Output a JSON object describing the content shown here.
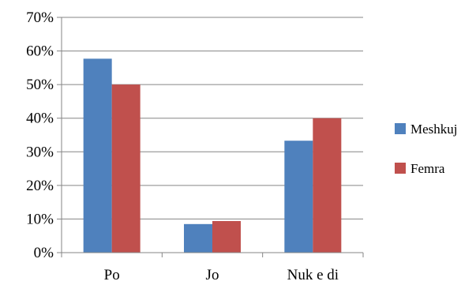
{
  "chart_data": {
    "type": "bar",
    "categories": [
      "Po",
      "Jo",
      "Nuk e di"
    ],
    "series": [
      {
        "name": "Meshkuj",
        "values": [
          57.7,
          8.5,
          33.3
        ],
        "color": "#4f81bd"
      },
      {
        "name": "Femra",
        "values": [
          50.0,
          9.4,
          40.0
        ],
        "color": "#c0504d"
      }
    ],
    "ylim": [
      0,
      70
    ],
    "y_ticks": [
      "0%",
      "10%",
      "20%",
      "30%",
      "40%",
      "50%",
      "60%",
      "70%"
    ],
    "y_tick_values": [
      0,
      10,
      20,
      30,
      40,
      50,
      60,
      70
    ],
    "grid": true,
    "legend": "right",
    "title": "",
    "xlabel": "",
    "ylabel": ""
  }
}
